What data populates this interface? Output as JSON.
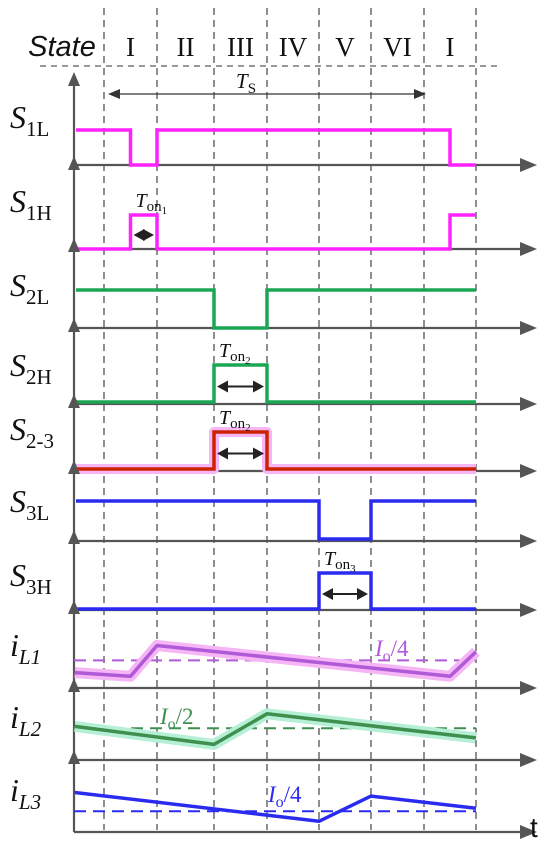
{
  "state_row": {
    "header": "State",
    "intervals": [
      "I",
      "II",
      "III",
      "IV",
      "V",
      "VI",
      "I"
    ]
  },
  "period_label": {
    "base": "T",
    "sub": "S"
  },
  "time_axis_label": "t",
  "colors": {
    "magenta": "#ff22ff",
    "magenta_halo": "#f6b6f6",
    "green": "#1aa655",
    "green_halo": "#b5efd6",
    "red": "#cc2200",
    "blue": "#2b2bf0",
    "blue_halo": "#c4c4ff",
    "purple": "#b05ad8",
    "greenline": "#3f8f4f",
    "axis": "#555555"
  },
  "traces": [
    {
      "id": "s1l",
      "label_base": "S",
      "label_sub": "1L",
      "color": "magenta",
      "kind": "switch",
      "high": [
        [
          0,
          0.5
        ],
        [
          1,
          6.5
        ]
      ],
      "y_range": [
        -0.2,
        1.2
      ]
    },
    {
      "id": "s1h",
      "label_base": "S",
      "label_sub": "1H",
      "color": "magenta",
      "kind": "switch",
      "high": [
        [
          0.5,
          1
        ],
        [
          6.5,
          7
        ]
      ],
      "y_range": [
        -0.2,
        1.2
      ],
      "ton": {
        "base": "T",
        "sub": "on",
        "subsub": "1",
        "interval": [
          0.5,
          1
        ]
      }
    },
    {
      "id": "s2l",
      "label_base": "S",
      "label_sub": "2L",
      "color": "green",
      "kind": "switch",
      "high": [
        [
          0,
          2
        ],
        [
          3,
          7
        ]
      ],
      "y_range": [
        -0.2,
        1.2
      ]
    },
    {
      "id": "s2h",
      "label_base": "S",
      "label_sub": "2H",
      "color": "green",
      "kind": "switch",
      "high": [
        [
          2,
          3
        ]
      ],
      "y_range": [
        -0.2,
        1.2
      ],
      "ton": {
        "base": "T",
        "sub": "on",
        "subsub": "2",
        "interval": [
          2,
          3
        ]
      }
    },
    {
      "id": "s23",
      "label_base": "S",
      "label_sub": "2-3",
      "color": "red",
      "kind": "switch",
      "halo": "magenta_halo",
      "high": [
        [
          2,
          3
        ]
      ],
      "y_range": [
        -0.2,
        1.2
      ],
      "ton": {
        "base": "T",
        "sub": "on",
        "subsub": "2",
        "interval": [
          2,
          3
        ]
      }
    },
    {
      "id": "s3l",
      "label_base": "S",
      "label_sub": "3L",
      "color": "blue",
      "kind": "switch",
      "high": [
        [
          0,
          4
        ],
        [
          5,
          7
        ]
      ],
      "y_range": [
        -0.2,
        1.2
      ]
    },
    {
      "id": "s3h",
      "label_base": "S",
      "label_sub": "3H",
      "color": "blue",
      "kind": "switch",
      "high": [
        [
          4,
          5
        ]
      ],
      "y_range": [
        -0.2,
        1.2
      ],
      "ton": {
        "base": "T",
        "sub": "on",
        "subsub": "3",
        "interval": [
          4,
          5
        ]
      }
    },
    {
      "id": "il1",
      "label_base": "i",
      "label_sub": "L1",
      "italic": true,
      "color": "purple",
      "halo": "magenta_halo",
      "kind": "current",
      "points": [
        [
          -0.55,
          0.12
        ],
        [
          0.5,
          0.02
        ],
        [
          1,
          0.85
        ],
        [
          6.5,
          0.02
        ],
        [
          7,
          0.68
        ]
      ],
      "dashed_level": 0.45,
      "dashed_label": {
        "base": "I",
        "sub": "o",
        "rest": "/4"
      },
      "y_range": [
        -0.2,
        1.05
      ]
    },
    {
      "id": "il2",
      "label_base": "i",
      "label_sub": "L2",
      "italic": true,
      "color": "greenline",
      "halo": "green_halo",
      "kind": "current",
      "points": [
        [
          -0.55,
          0.6
        ],
        [
          2,
          0.1
        ],
        [
          3,
          0.95
        ],
        [
          7,
          0.28
        ]
      ],
      "dashed_level": 0.55,
      "dashed_label": {
        "base": "I",
        "sub": "o",
        "rest": "/2"
      },
      "y_range": [
        -0.2,
        1.05
      ]
    },
    {
      "id": "il3",
      "label_base": "i",
      "label_sub": "L3",
      "italic": true,
      "color": "blue",
      "kind": "current",
      "points": [
        [
          -0.55,
          0.82
        ],
        [
          4,
          0.02
        ],
        [
          5,
          0.72
        ],
        [
          7,
          0.38
        ]
      ],
      "dashed_level": 0.3,
      "dashed_label": {
        "base": "I",
        "sub": "o",
        "rest": "/4"
      },
      "y_range": [
        -0.2,
        1.05
      ]
    }
  ]
}
